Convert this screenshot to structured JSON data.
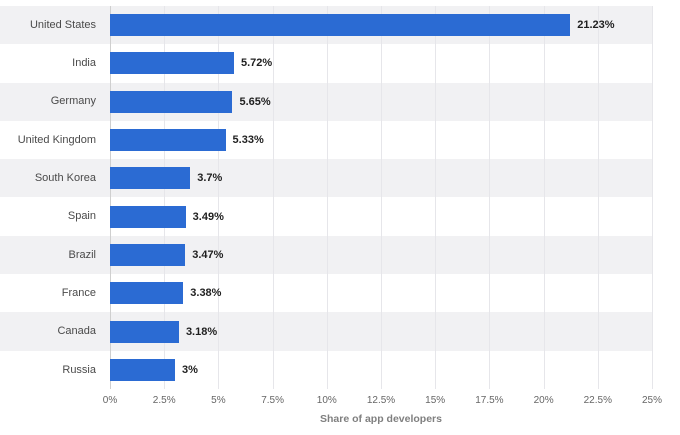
{
  "chart_data": {
    "type": "bar",
    "orientation": "horizontal",
    "title": "",
    "xlabel": "Share of app developers",
    "ylabel": "",
    "categories": [
      "United States",
      "India",
      "Germany",
      "United Kingdom",
      "South Korea",
      "Spain",
      "Brazil",
      "France",
      "Canada",
      "Russia"
    ],
    "values": [
      21.23,
      5.72,
      5.65,
      5.33,
      3.7,
      3.49,
      3.47,
      3.38,
      3.18,
      3
    ],
    "value_labels": [
      "21.23%",
      "5.72%",
      "5.65%",
      "5.33%",
      "3.7%",
      "3.49%",
      "3.47%",
      "3.38%",
      "3.18%",
      "3%"
    ],
    "xlim": [
      0,
      25
    ],
    "x_ticks": [
      0,
      2.5,
      5,
      7.5,
      10,
      12.5,
      15,
      17.5,
      20,
      22.5,
      25
    ],
    "x_tick_labels": [
      "0%",
      "2.5%",
      "5%",
      "7.5%",
      "10%",
      "12.5%",
      "15%",
      "17.5%",
      "20%",
      "22.5%",
      "25%"
    ],
    "grid": true,
    "legend": false,
    "bar_color": "#2b6bd3",
    "stripe_color": "#f1f1f3",
    "background_color": "#ffffff"
  }
}
